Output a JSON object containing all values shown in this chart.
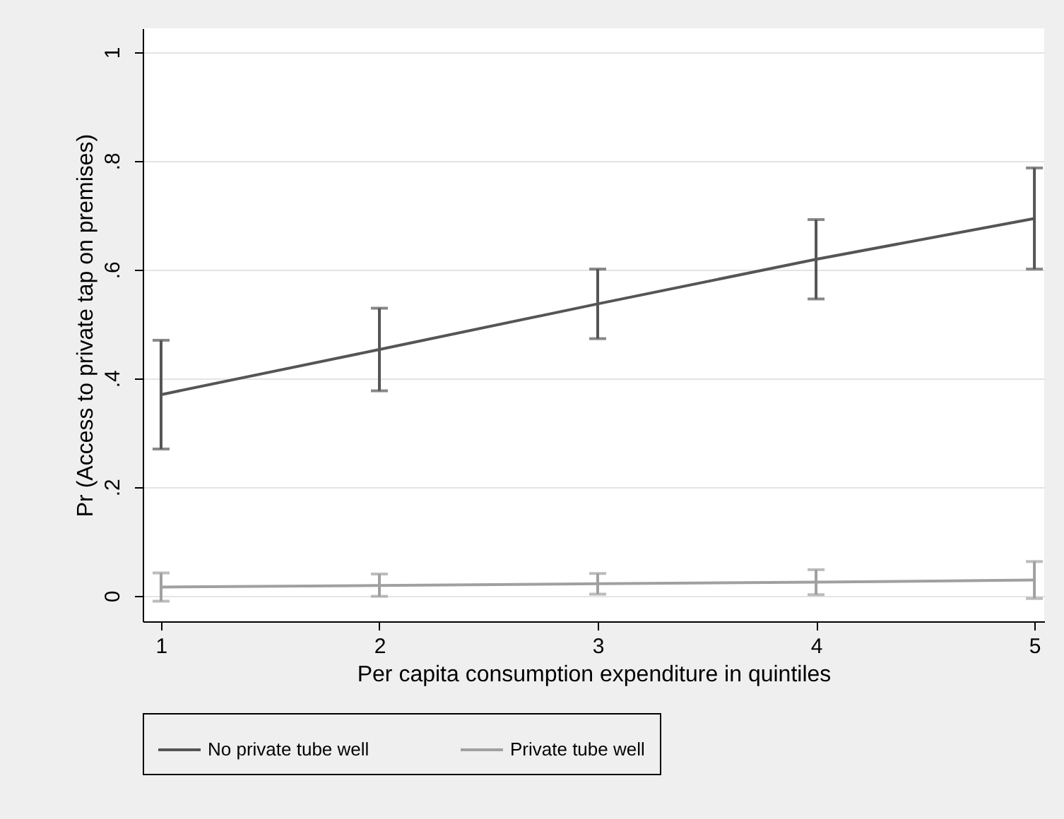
{
  "chart_data": {
    "type": "line",
    "xlabel": "Per capita consumption expenditure in quintiles",
    "ylabel": "Pr (Access to private tap on premises)",
    "x": [
      1,
      2,
      3,
      4,
      5
    ],
    "xlim": [
      0.916,
      5.045
    ],
    "xticks": [
      1,
      2,
      3,
      4,
      5
    ],
    "ylim": [
      -0.047,
      1.044
    ],
    "yticks": [
      0,
      {
        "value": 0.2,
        "label": ".2"
      },
      {
        "value": 0.4,
        "label": ".4"
      },
      {
        "value": 0.6,
        "label": ".6"
      },
      {
        "value": 0.8,
        "label": ".8"
      },
      1
    ],
    "grid": "y",
    "legend": "bottom",
    "marker": "none",
    "line_style": "solid",
    "series": [
      {
        "name": "No private tube well",
        "color": "#555555",
        "values": [
          0.37,
          0.453,
          0.537,
          0.619,
          0.694
        ],
        "errors": [
          [
            0.27,
            0.47
          ],
          [
            0.377,
            0.529
          ],
          [
            0.473,
            0.601
          ],
          [
            0.546,
            0.692
          ],
          [
            0.601,
            0.787
          ]
        ]
      },
      {
        "name": "Private tube well",
        "color": "#a0a0a0",
        "values": [
          0.016,
          0.019,
          0.022,
          0.025,
          0.029
        ],
        "errors": [
          [
            -0.01,
            0.042
          ],
          [
            -0.001,
            0.04
          ],
          [
            0.003,
            0.041
          ],
          [
            0.002,
            0.048
          ],
          [
            -0.005,
            0.063
          ]
        ]
      }
    ]
  }
}
